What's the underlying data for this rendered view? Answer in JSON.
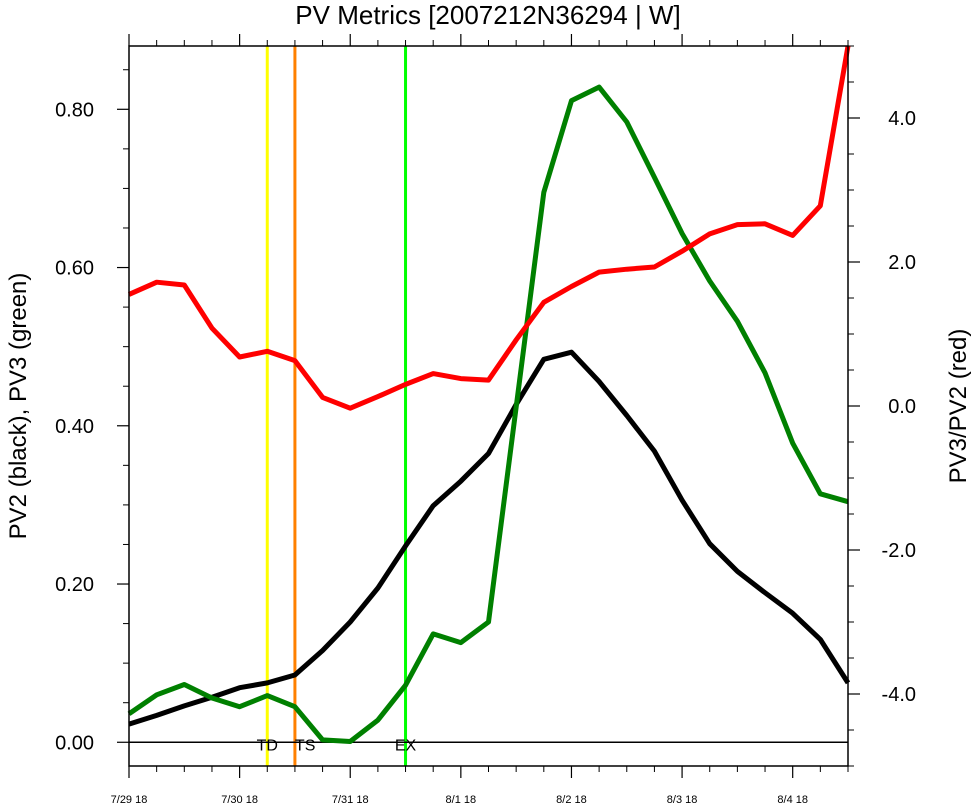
{
  "chart_data": {
    "type": "line",
    "title": "PV Metrics [2007212N36294 | W]",
    "x_tick_labels": [
      "7/29 18",
      "7/30 18",
      "7/31 18",
      "8/1 18",
      "8/2 18",
      "8/3 18",
      "8/4 18"
    ],
    "x_range_steps": [
      0,
      26
    ],
    "left_axis": {
      "label": "PV2 (black), PV3 (green)",
      "range": [
        -0.03,
        0.88
      ],
      "major_ticks": [
        0.0,
        0.2,
        0.4,
        0.6,
        0.8
      ],
      "tick_labels": [
        "0.00",
        "0.20",
        "0.40",
        "0.60",
        "0.80"
      ]
    },
    "right_axis": {
      "label": "PV3/PV2 (red)",
      "range": [
        -5.0,
        5.0
      ],
      "major_ticks": [
        -4.0,
        -2.0,
        0.0,
        2.0,
        4.0
      ],
      "tick_labels": [
        "-4.0",
        "-2.0",
        "0.0",
        "2.0",
        "4.0"
      ]
    },
    "series": [
      {
        "color": "#000000",
        "axis": "left",
        "values": [
          0.023,
          0.034,
          0.046,
          0.057,
          0.069,
          0.075,
          0.085,
          0.116,
          0.152,
          0.195,
          0.248,
          0.299,
          0.33,
          0.365,
          0.427,
          0.484,
          0.493,
          0.456,
          0.413,
          0.368,
          0.306,
          0.251,
          0.216,
          0.189,
          0.163,
          0.13,
          0.075
        ]
      },
      {
        "color": "#008000",
        "axis": "left",
        "values": [
          0.036,
          0.06,
          0.073,
          0.056,
          0.045,
          0.059,
          0.045,
          0.003,
          0.001,
          0.028,
          0.072,
          0.137,
          0.126,
          0.152,
          0.424,
          0.695,
          0.811,
          0.828,
          0.784,
          0.714,
          0.643,
          0.583,
          0.532,
          0.467,
          0.378,
          0.314,
          0.304
        ]
      },
      {
        "color": "#ff0000",
        "axis": "right",
        "values": [
          1.55,
          1.72,
          1.68,
          1.08,
          0.68,
          0.76,
          0.63,
          0.12,
          -0.03,
          0.13,
          0.3,
          0.45,
          0.38,
          0.36,
          0.92,
          1.44,
          1.66,
          1.86,
          1.9,
          1.93,
          2.15,
          2.39,
          2.52,
          2.53,
          2.37,
          2.78,
          5.0
        ]
      }
    ],
    "markers": [
      {
        "x": 5.0,
        "color": "#ffff00",
        "label": "TD"
      },
      {
        "x": 6.0,
        "color": "#ff8000",
        "label": "TS"
      },
      {
        "x": 10.0,
        "color": "#00ff00",
        "label": "EX"
      }
    ],
    "zero_line": {
      "value": 0.0,
      "axis": "left"
    },
    "grid": false,
    "legend": "none"
  }
}
